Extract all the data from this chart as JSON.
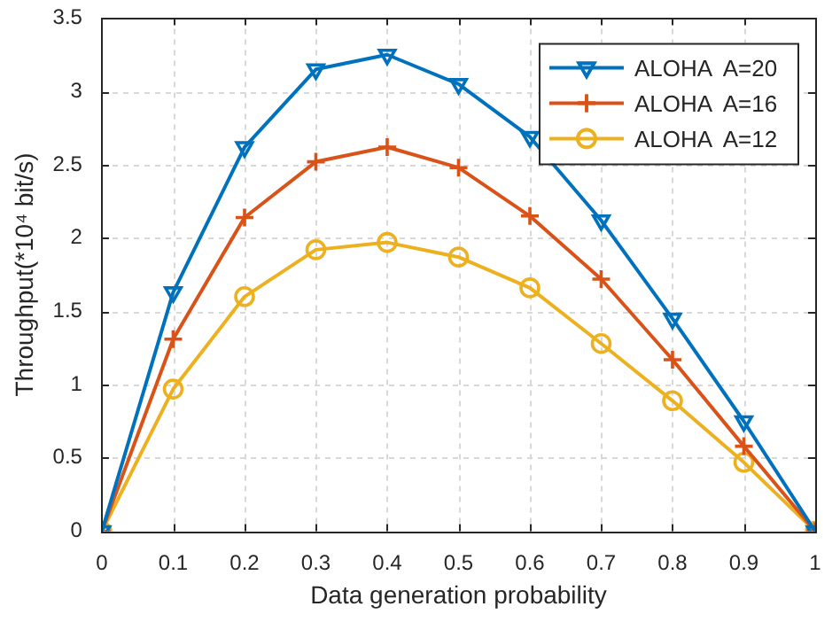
{
  "chart_data": {
    "type": "line",
    "xlabel": "Data generation probability",
    "ylabel": "Throughput(*10⁴ bit/s)",
    "x": [
      0,
      0.1,
      0.2,
      0.3,
      0.4,
      0.5,
      0.6,
      0.7,
      0.8,
      0.9,
      1
    ],
    "xlim": [
      0,
      1
    ],
    "xticks": [
      0,
      0.1,
      0.2,
      0.3,
      0.4,
      0.5,
      0.6,
      0.7,
      0.8,
      0.9,
      1
    ],
    "ylim": [
      0,
      3.5
    ],
    "yticks": [
      0,
      0.5,
      1,
      1.5,
      2,
      2.5,
      3,
      3.5
    ],
    "grid": true,
    "legend": "top right",
    "line_style": "solid",
    "series": [
      {
        "name": "ALOHA  A=20",
        "color": "#0072bd",
        "marker": "triangle",
        "values": [
          0,
          1.63,
          2.62,
          3.15,
          3.25,
          3.05,
          2.69,
          2.12,
          1.45,
          0.75,
          0
        ]
      },
      {
        "name": "ALOHA  A=16",
        "color": "#d95319",
        "marker": "cross",
        "values": [
          0,
          1.31,
          2.14,
          2.52,
          2.62,
          2.48,
          2.15,
          1.72,
          1.17,
          0.58,
          0
        ]
      },
      {
        "name": "ALOHA  A=12",
        "color": "#edb120",
        "marker": "circle",
        "values": [
          0,
          0.97,
          1.6,
          1.92,
          1.97,
          1.87,
          1.66,
          1.28,
          0.89,
          0.47,
          0
        ]
      }
    ]
  }
}
